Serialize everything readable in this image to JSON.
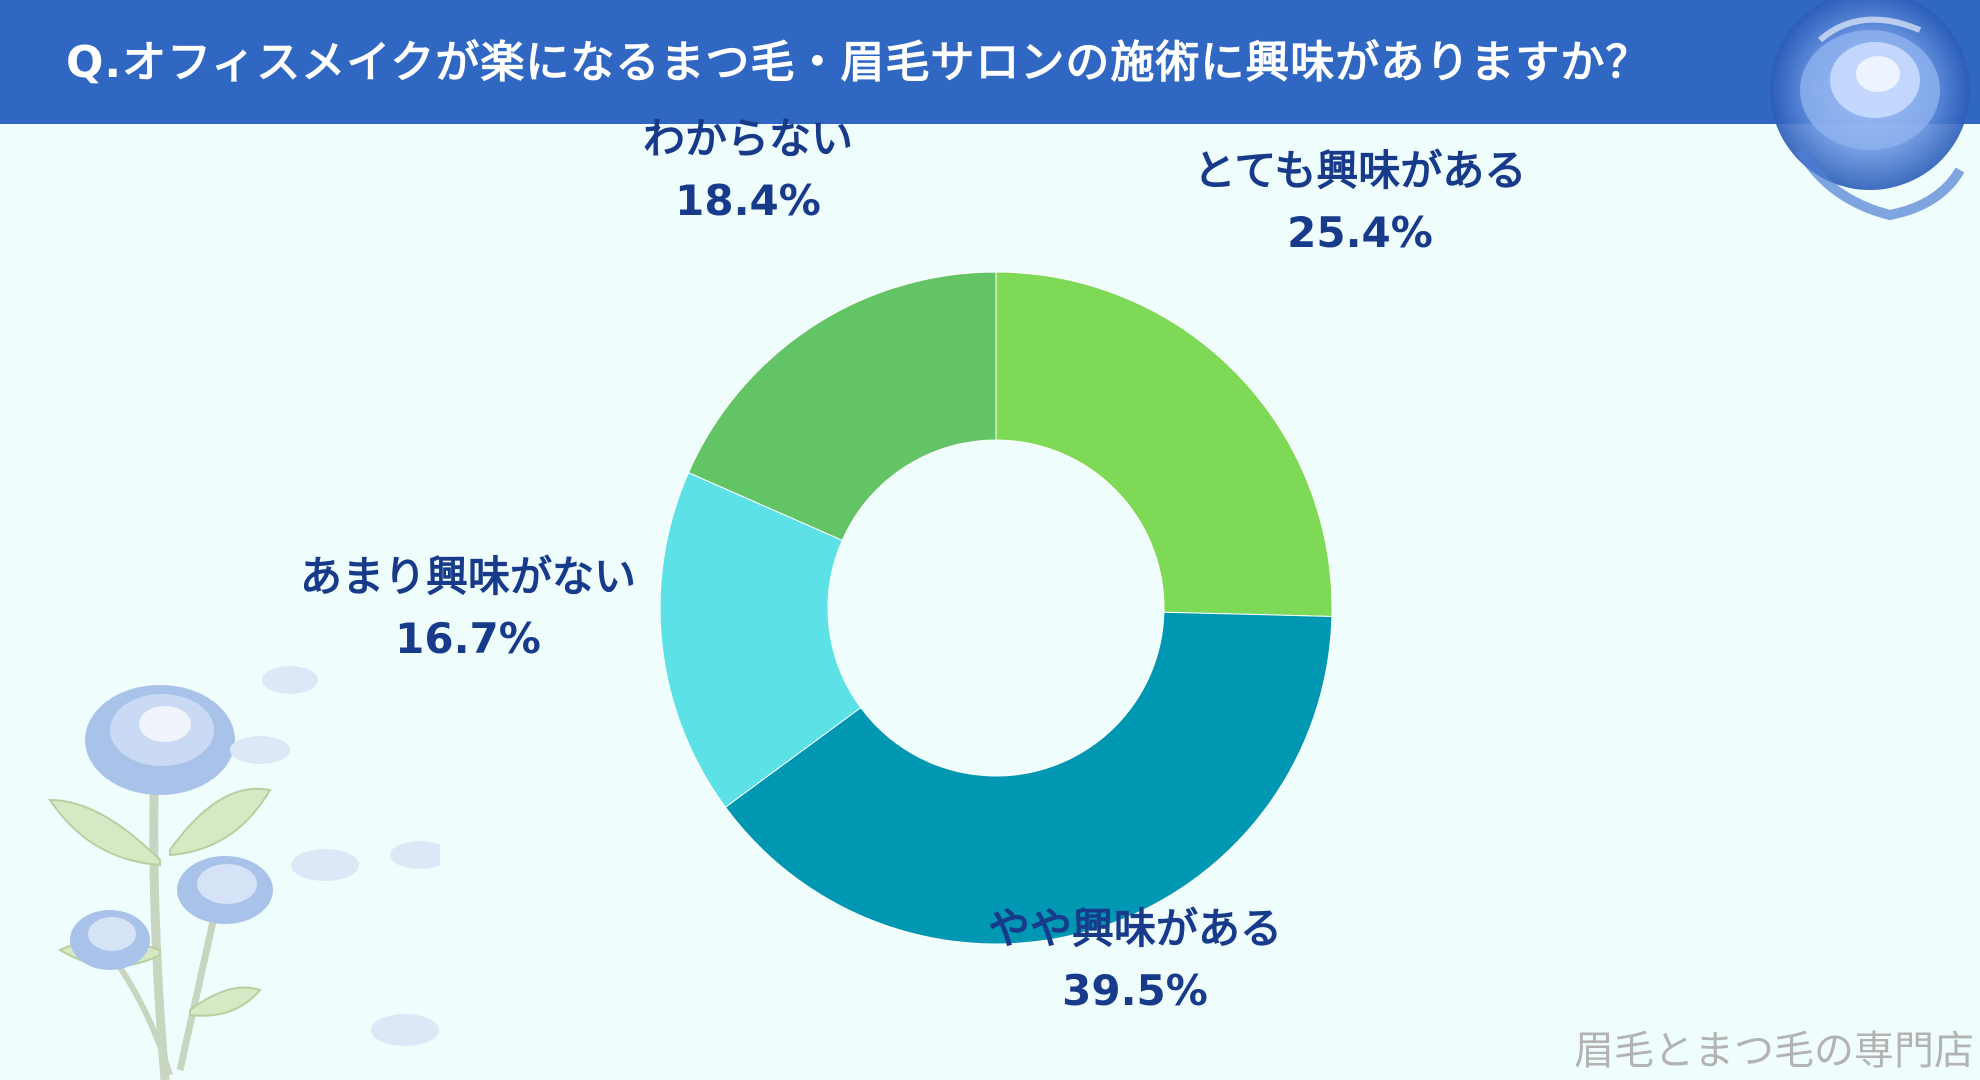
{
  "header": {
    "title": "Q.オフィスメイクが楽になるまつ毛・眉毛サロンの施術に興味がありますか？"
  },
  "chart_data": {
    "type": "pie",
    "variant": "donut",
    "title": "Q.オフィスメイクが楽になるまつ毛・眉毛サロンの施術に興味がありますか？",
    "slices": [
      {
        "label": "とても興味がある",
        "value": 25.4,
        "display": "25.4%",
        "color": "#7ed957"
      },
      {
        "label": "やや興味がある",
        "value": 39.5,
        "display": "39.5%",
        "color": "#0097b2"
      },
      {
        "label": "あまり興味がない",
        "value": 16.7,
        "display": "16.7%",
        "color": "#5ce1e6"
      },
      {
        "label": "わからない",
        "value": 18.4,
        "display": "18.4%",
        "color": "#63c466"
      }
    ],
    "start": "12 o'clock",
    "direction": "clockwise"
  },
  "watermark": "眉毛とまつ毛の専門店",
  "decorations": {
    "top_right": "blue-rose-icon",
    "bottom_left": "blue-rose-bouquet-icon"
  }
}
